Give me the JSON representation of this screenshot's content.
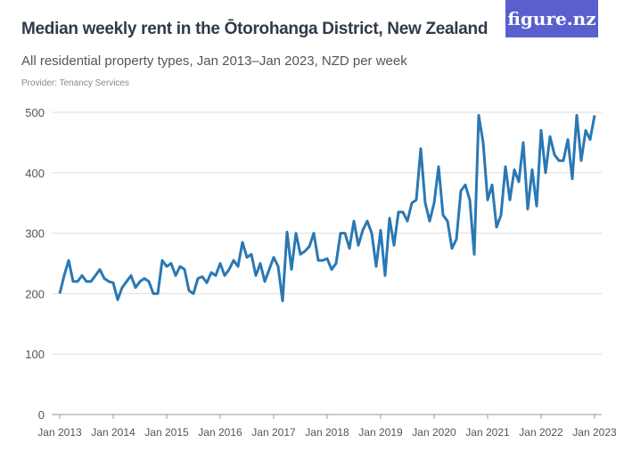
{
  "header": {
    "title": "Median weekly rent in the Ōtorohanga District, New Zealand",
    "subtitle": "All residential property types, Jan 2013–Jan 2023, NZD per week",
    "provider": "Provider: Tenancy Services",
    "logo": "figure.nz"
  },
  "colors": {
    "line": "#2a78b4",
    "logo_bg": "#5a5fcf",
    "grid": "#dddddd"
  },
  "chart_data": {
    "type": "line",
    "title": "Median weekly rent in the Ōtorohanga District, New Zealand",
    "xlabel": "",
    "ylabel": "",
    "ylim": [
      0,
      500
    ],
    "yticks": [
      0,
      100,
      200,
      300,
      400,
      500
    ],
    "grid": true,
    "xticks": [
      "Jan 2013",
      "Jan 2014",
      "Jan 2015",
      "Jan 2016",
      "Jan 2017",
      "Jan 2018",
      "Jan 2019",
      "Jan 2020",
      "Jan 2021",
      "Jan 2022",
      "Jan 2023"
    ],
    "x_start": "Jan 2013",
    "x_step": "monthly",
    "values": [
      200,
      230,
      255,
      220,
      220,
      230,
      220,
      220,
      230,
      240,
      225,
      220,
      218,
      190,
      210,
      220,
      230,
      210,
      220,
      225,
      220,
      200,
      200,
      255,
      245,
      250,
      230,
      245,
      240,
      205,
      200,
      225,
      228,
      218,
      235,
      230,
      250,
      230,
      240,
      255,
      245,
      285,
      260,
      265,
      230,
      250,
      220,
      240,
      260,
      245,
      188,
      302,
      240,
      300,
      265,
      270,
      278,
      300,
      255,
      255,
      258,
      240,
      250,
      300,
      300,
      275,
      320,
      280,
      305,
      320,
      300,
      245,
      305,
      230,
      325,
      280,
      335,
      335,
      320,
      350,
      355,
      440,
      350,
      320,
      350,
      410,
      330,
      320,
      275,
      290,
      370,
      380,
      355,
      265,
      495,
      450,
      355,
      380,
      310,
      330,
      410,
      355,
      405,
      385,
      450,
      340,
      405,
      345,
      470,
      400,
      460,
      430,
      420,
      420,
      455,
      390,
      495,
      420,
      470,
      455,
      495
    ]
  }
}
